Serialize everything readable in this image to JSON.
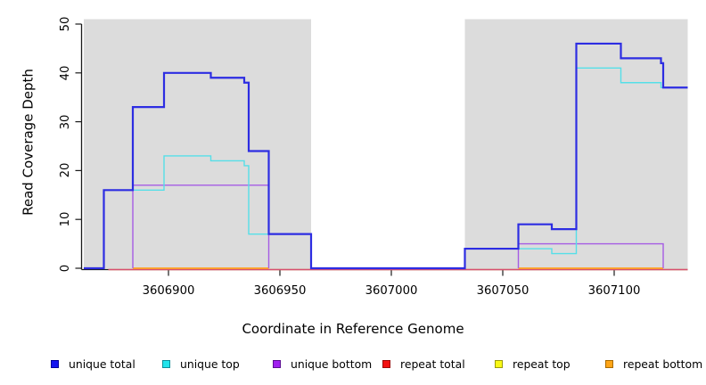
{
  "axes": {
    "x": {
      "title": "Coordinate in Reference Genome",
      "tick_values": [
        3606900,
        3606950,
        3607000,
        3607050,
        3607100
      ],
      "tick_labels": [
        "3606900",
        "3606950",
        "3607000",
        "3607050",
        "3607100"
      ]
    },
    "y": {
      "title": "Read Coverage Depth",
      "tick_values": [
        0,
        10,
        20,
        30,
        40,
        50
      ],
      "tick_labels": [
        "0",
        "10",
        "20",
        "30",
        "40",
        "50"
      ]
    }
  },
  "legend": {
    "items": [
      {
        "label": "unique total",
        "fill": "#1414f0",
        "border": "#00009b"
      },
      {
        "label": "unique top",
        "fill": "#21e4ec",
        "border": "#0e8f9b"
      },
      {
        "label": "unique bottom",
        "fill": "#a020f0",
        "border": "#5c0f93"
      },
      {
        "label": "repeat total",
        "fill": "#f31111",
        "border": "#9b0b0b"
      },
      {
        "label": "repeat top",
        "fill": "#f9f915",
        "border": "#9b9b0e"
      },
      {
        "label": "repeat bottom",
        "fill": "#ffa516",
        "border": "#a86a00"
      }
    ]
  },
  "chart_data": {
    "type": "line",
    "subtype": "step",
    "title": "",
    "xlabel": "Coordinate in Reference Genome",
    "ylabel": "Read Coverage Depth",
    "xlim": [
      3606862,
      3607133
    ],
    "ylim": [
      0,
      51
    ],
    "grid": false,
    "legend_position": "bottom",
    "background_color": "#ffffff",
    "region_color": "#dcdcdc",
    "shaded_regions": [
      {
        "name": "left-gray-region",
        "x0": 3606862,
        "x1": 3606964
      },
      {
        "name": "right-gray-region",
        "x0": 3607033,
        "x1": 3607133
      }
    ],
    "series": [
      {
        "name": "repeat top",
        "line_color": "#f2f230",
        "width": 1.2,
        "y_nudge": 1.5,
        "hide_zero_runs": false,
        "segments": [
          [
            3606873,
            3607133,
            0
          ]
        ]
      },
      {
        "name": "repeat total",
        "line_color": "#d84f72",
        "width": 1.4,
        "y_nudge": 1.5,
        "hide_zero_runs": false,
        "segments": [
          [
            3606873,
            3607133,
            0
          ]
        ]
      },
      {
        "name": "repeat bottom",
        "line_color": "#ff9f1f",
        "width": 1.8,
        "y_nudge": 0,
        "hide_zero_runs": false,
        "segments": [
          [
            3606884,
            3606945,
            0
          ],
          [
            3607057,
            3607122,
            0
          ]
        ]
      },
      {
        "name": "unique bottom",
        "line_color": "#a55ce4",
        "width": 1.4,
        "y_nudge": 0,
        "hide_zero_runs": true,
        "segments": [
          [
            3606884,
            3606945,
            17
          ],
          [
            3607057,
            3607122,
            5
          ]
        ]
      },
      {
        "name": "unique top",
        "line_color": "#55dfe8",
        "width": 1.4,
        "y_nudge": 0,
        "hide_zero_runs": false,
        "segments": [
          [
            3606862,
            3606871,
            0
          ],
          [
            3606871,
            3606898,
            16
          ],
          [
            3606898,
            3606919,
            23
          ],
          [
            3606919,
            3606934,
            22
          ],
          [
            3606934,
            3606936,
            21
          ],
          [
            3606936,
            3606964,
            7
          ],
          [
            3606964,
            3607033,
            0
          ],
          [
            3607033,
            3607072,
            4
          ],
          [
            3607072,
            3607083,
            3
          ],
          [
            3607083,
            3607103,
            41
          ],
          [
            3607103,
            3607121,
            38
          ],
          [
            3607121,
            3607133,
            37
          ]
        ]
      },
      {
        "name": "unique total",
        "line_color": "#2d2de2",
        "width": 2.2,
        "y_nudge": 0,
        "hide_zero_runs": false,
        "segments": [
          [
            3606862,
            3606871,
            0
          ],
          [
            3606871,
            3606884,
            16
          ],
          [
            3606884,
            3606898,
            33
          ],
          [
            3606898,
            3606919,
            40
          ],
          [
            3606919,
            3606934,
            39
          ],
          [
            3606934,
            3606936,
            38
          ],
          [
            3606936,
            3606945,
            24
          ],
          [
            3606945,
            3606964,
            7
          ],
          [
            3606964,
            3607033,
            0
          ],
          [
            3607033,
            3607057,
            4
          ],
          [
            3607057,
            3607072,
            9
          ],
          [
            3607072,
            3607083,
            8
          ],
          [
            3607083,
            3607103,
            46
          ],
          [
            3607103,
            3607121,
            43
          ],
          [
            3607121,
            3607122,
            42
          ],
          [
            3607122,
            3607133,
            37
          ]
        ]
      }
    ]
  }
}
